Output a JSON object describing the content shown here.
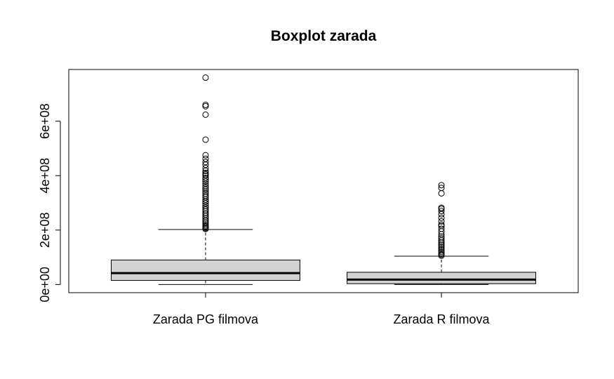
{
  "chart_data": {
    "type": "boxplot",
    "title": "Boxplot zarada",
    "xlabel": "",
    "ylabel": "",
    "ylim": [
      -30000000,
      790000000
    ],
    "yticks": [
      0,
      200000000,
      400000000,
      600000000
    ],
    "ytick_labels": [
      "0e+00",
      "2e+08",
      "4e+08",
      "6e+08"
    ],
    "grid": false,
    "box_fill": "#d3d3d3",
    "series": [
      {
        "label": "Zarada PG filmova",
        "min": 0,
        "q1": 15000000,
        "median": 42000000,
        "q3": 90000000,
        "whisker_high": 202000000,
        "outliers": [
          760000000,
          660000000,
          655000000,
          624000000,
          532000000,
          475000000,
          462000000,
          450000000,
          440000000,
          428000000,
          418000000,
          410000000,
          405000000,
          400000000,
          392000000,
          385000000,
          378000000,
          370000000,
          362000000,
          355000000,
          348000000,
          340000000,
          333000000,
          326000000,
          320000000,
          312000000,
          305000000,
          298000000,
          290000000,
          283000000,
          276000000,
          270000000,
          263000000,
          257000000,
          250000000,
          243000000,
          236000000,
          230000000,
          224000000,
          218000000,
          214000000,
          210000000,
          207000000,
          204000000
        ]
      },
      {
        "label": "Zarada R filmova",
        "min": 0,
        "q1": 3000000,
        "median": 18000000,
        "q3": 45000000,
        "whisker_high": 104000000,
        "outliers": [
          365000000,
          355000000,
          335000000,
          282000000,
          278000000,
          270000000,
          258000000,
          245000000,
          232000000,
          220000000,
          215000000,
          205000000,
          195000000,
          185000000,
          176000000,
          170000000,
          163000000,
          156000000,
          150000000,
          144000000,
          138000000,
          132000000,
          126000000,
          120000000,
          115000000,
          110000000,
          106000000
        ]
      }
    ]
  }
}
